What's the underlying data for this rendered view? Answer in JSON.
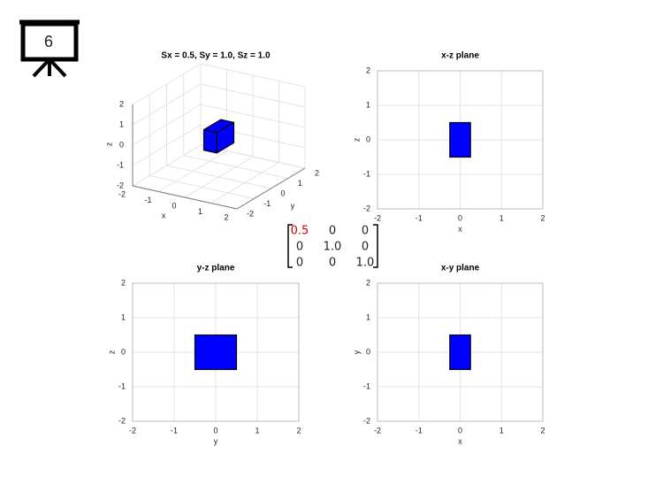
{
  "slide_number": 6,
  "matrix": {
    "rows": [
      [
        "0.5",
        "0",
        "0"
      ],
      [
        "0",
        "1.0",
        "0"
      ],
      [
        "0",
        "0",
        "1.0"
      ]
    ]
  },
  "chart_data": [
    {
      "type": "box3d",
      "title": "Sx = 0.5, Sy = 1.0, Sz = 1.0",
      "xlabel": "x",
      "ylabel": "y",
      "zlabel": "z",
      "xlim": [
        -2,
        2
      ],
      "ylim": [
        -2,
        2
      ],
      "zlim": [
        -2,
        2
      ],
      "xticks": [
        -2,
        -1,
        0,
        1,
        2
      ],
      "yticks": [
        -2,
        -1,
        0,
        1,
        2
      ],
      "zticks": [
        -2,
        -1,
        0,
        1,
        2
      ],
      "x": [
        -0.25,
        0.25
      ],
      "y": [
        -0.5,
        0.5
      ],
      "z": [
        -0.5,
        0.5
      ],
      "color": "#0000ff",
      "grid": true
    },
    {
      "type": "rectangle",
      "title": "x-z plane",
      "xlabel": "x",
      "ylabel": "z",
      "xlim": [
        -2,
        2
      ],
      "ylim": [
        -2,
        2
      ],
      "xticks": [
        -2,
        -1,
        0,
        1,
        2
      ],
      "yticks": [
        -2,
        -1,
        0,
        1,
        2
      ],
      "x": [
        -0.25,
        0.25
      ],
      "y": [
        -0.5,
        0.5
      ],
      "color": "#0000ff",
      "grid": true
    },
    {
      "type": "rectangle",
      "title": "y-z plane",
      "xlabel": "y",
      "ylabel": "z",
      "xlim": [
        -2,
        2
      ],
      "ylim": [
        -2,
        2
      ],
      "xticks": [
        -2,
        -1,
        0,
        1,
        2
      ],
      "yticks": [
        -2,
        -1,
        0,
        1,
        2
      ],
      "x": [
        -0.5,
        0.5
      ],
      "y": [
        -0.5,
        0.5
      ],
      "color": "#0000ff",
      "grid": true
    },
    {
      "type": "rectangle",
      "title": "x-y plane",
      "xlabel": "x",
      "ylabel": "y",
      "xlim": [
        -2,
        2
      ],
      "ylim": [
        -2,
        2
      ],
      "xticks": [
        -2,
        -1,
        0,
        1,
        2
      ],
      "yticks": [
        -2,
        -1,
        0,
        1,
        2
      ],
      "x": [
        -0.25,
        0.25
      ],
      "y": [
        -0.5,
        0.5
      ],
      "color": "#0000ff",
      "grid": true
    }
  ]
}
